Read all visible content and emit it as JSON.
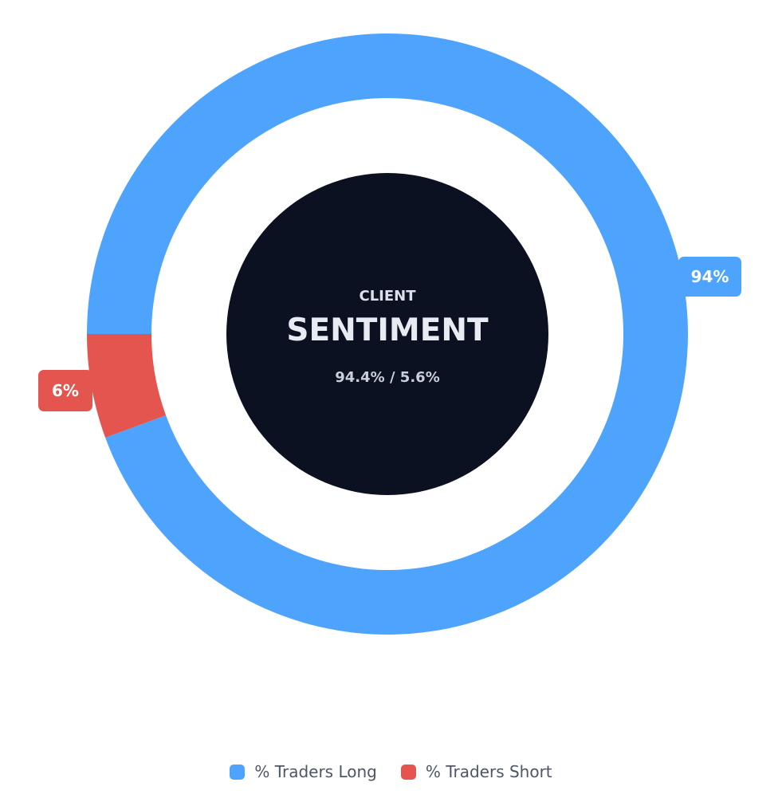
{
  "chart_data": {
    "type": "pie",
    "categories": [
      "% Traders Long",
      "% Traders Short"
    ],
    "values": [
      94.4,
      5.6
    ],
    "data_labels": [
      "94%",
      "6%"
    ],
    "colors": [
      "#4ea3fd",
      "#e45550"
    ],
    "legend_position": "bottom"
  },
  "center": {
    "line1": "CLIENT",
    "line2": "SENTIMENT",
    "line3": "94.4% / 5.6%",
    "background": "#0b1120"
  },
  "legend": {
    "items": [
      {
        "label": "% Traders Long",
        "color": "#4ea3fd"
      },
      {
        "label": "% Traders Short",
        "color": "#e45550"
      }
    ]
  }
}
